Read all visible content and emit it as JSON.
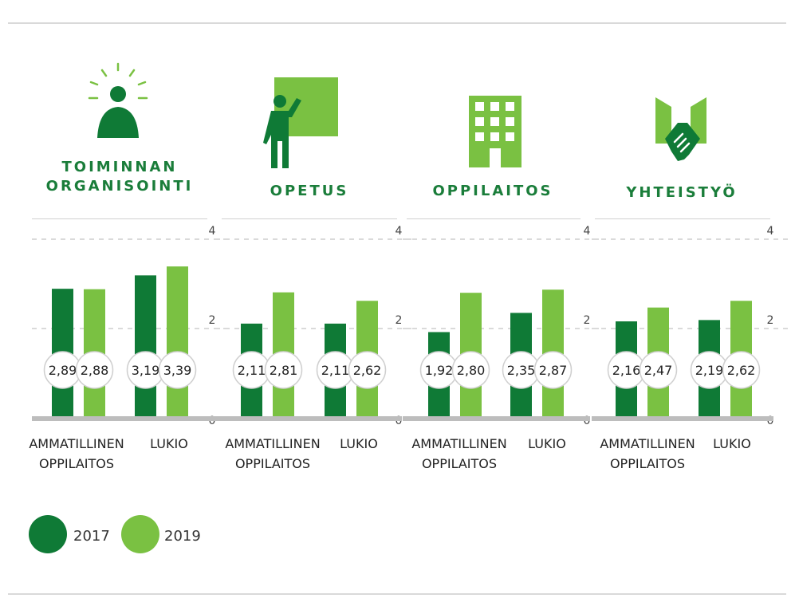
{
  "colors": {
    "y2017": "#0f7a36",
    "y2019": "#7ac142",
    "icon_light": "#7ac142",
    "icon_dark": "#0f7a36"
  },
  "legend": [
    {
      "label": "2017",
      "color": "#0f7a36"
    },
    {
      "label": "2019",
      "color": "#7ac142"
    }
  ],
  "chart_data": [
    {
      "type": "bar",
      "title": "TOIMINNAN\nORGANISOINTI",
      "icon": "person-idea-icon",
      "categories": [
        "AMMATILLINEN\nOPPILAITOS",
        "LUKIO"
      ],
      "series": [
        {
          "name": "2017",
          "values": [
            2.89,
            3.19
          ]
        },
        {
          "name": "2019",
          "values": [
            2.88,
            3.39
          ]
        }
      ],
      "labels": [
        [
          "2,89",
          "3,19"
        ],
        [
          "2,88",
          "3,39"
        ]
      ],
      "ylim": [
        0,
        4
      ],
      "ticks": [
        "0",
        "2",
        "4"
      ]
    },
    {
      "type": "bar",
      "title": "OPETUS",
      "icon": "teacher-board-icon",
      "categories": [
        "AMMATILLINEN\nOPPILAITOS",
        "LUKIO"
      ],
      "series": [
        {
          "name": "2017",
          "values": [
            2.11,
            2.11
          ]
        },
        {
          "name": "2019",
          "values": [
            2.81,
            2.62
          ]
        }
      ],
      "labels": [
        [
          "2,11",
          "2,11"
        ],
        [
          "2,81",
          "2,62"
        ]
      ],
      "ylim": [
        0,
        4
      ],
      "ticks": [
        "0",
        "2",
        "4"
      ]
    },
    {
      "type": "bar",
      "title": "OPPILAITOS",
      "icon": "building-icon",
      "categories": [
        "AMMATILLINEN\nOPPILAITOS",
        "LUKIO"
      ],
      "series": [
        {
          "name": "2017",
          "values": [
            1.92,
            2.35
          ]
        },
        {
          "name": "2019",
          "values": [
            2.8,
            2.87
          ]
        }
      ],
      "labels": [
        [
          "1,92",
          "2,35"
        ],
        [
          "2,80",
          "2,87"
        ]
      ],
      "ylim": [
        0,
        4
      ],
      "ticks": [
        "0",
        "2",
        "4"
      ]
    },
    {
      "type": "bar",
      "title": "YHTEISTYÖ",
      "icon": "handshake-icon",
      "categories": [
        "AMMATILLINEN\nOPPILAITOS",
        "LUKIO"
      ],
      "series": [
        {
          "name": "2017",
          "values": [
            2.16,
            2.19
          ]
        },
        {
          "name": "2019",
          "values": [
            2.47,
            2.62
          ]
        }
      ],
      "labels": [
        [
          "2,16",
          "2,19"
        ],
        [
          "2,47",
          "2,62"
        ]
      ],
      "ylim": [
        0,
        4
      ],
      "ticks": [
        "0",
        "2",
        "4"
      ]
    }
  ]
}
